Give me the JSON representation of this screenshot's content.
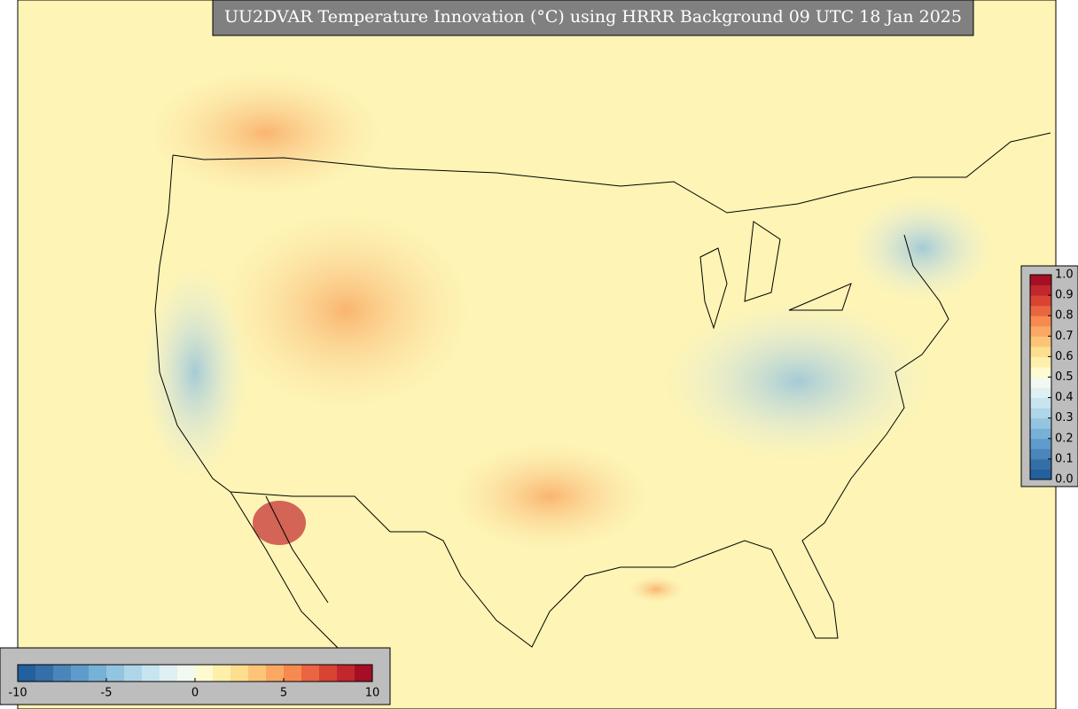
{
  "title": "UU2DVAR Temperature Innovation (°C) using HRRR Background 09 UTC 18 Jan 2025",
  "colorbars": [
    {
      "orientation": "horizontal",
      "range": [
        -10,
        10
      ],
      "ticks": [
        -10,
        -5,
        0,
        5,
        10
      ],
      "colors": [
        "#23609e",
        "#346fa8",
        "#4a86ba",
        "#5f9ccb",
        "#78b1d6",
        "#93c4e0",
        "#aed6e8",
        "#c8e5ef",
        "#dff0f4",
        "#f2f9f1",
        "#fefbd0",
        "#feefaa",
        "#fdde8e",
        "#fdc477",
        "#fba862",
        "#f68a50",
        "#ea6541",
        "#d84332",
        "#c1272d",
        "#a50f26"
      ]
    },
    {
      "orientation": "vertical",
      "range": [
        0,
        1
      ],
      "ticks": [
        {
          "value": 0,
          "label": "0.0"
        },
        0.1,
        0.2,
        0.3,
        0.4,
        0.5,
        0.6,
        0.7,
        0.8,
        0.9,
        {
          "value": 1,
          "label": "1.0"
        }
      ],
      "colors": [
        "#23609e",
        "#346fa8",
        "#4a86ba",
        "#5f9ccb",
        "#78b1d6",
        "#93c4e0",
        "#aed6e8",
        "#c8e5ef",
        "#dff0f4",
        "#f2f9f1",
        "#fefbd0",
        "#feefaa",
        "#fdde8e",
        "#fdc477",
        "#fba862",
        "#f68a50",
        "#ea6541",
        "#d84332",
        "#c1272d",
        "#a50f26"
      ]
    }
  ]
}
